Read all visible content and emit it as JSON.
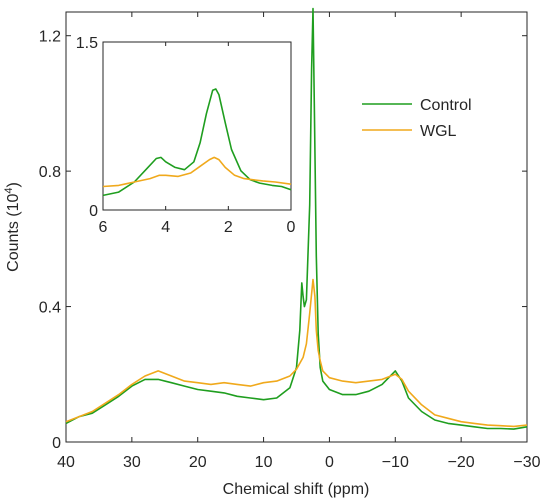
{
  "chart_data": [
    {
      "type": "line",
      "xlabel": "Chemical shift (ppm)",
      "ylabel_main": "Counts (10",
      "ylabel_sup": "4",
      "ylabel_close": ")",
      "xlim": [
        40,
        -30
      ],
      "ylim": [
        0,
        1.27
      ],
      "x_ticks": [
        40,
        30,
        20,
        10,
        0,
        -10,
        -20,
        -30
      ],
      "x_tick_labels": [
        "40",
        "30",
        "20",
        "10",
        "0",
        "−10",
        "−20",
        "−30"
      ],
      "y_ticks": [
        0,
        0.4,
        0.8,
        1.2
      ],
      "y_tick_labels": [
        "0",
        "0.4",
        "0.8",
        "1.2"
      ],
      "legend_position": "top-right",
      "series": [
        {
          "name": "Control",
          "color": "#1f9e1f",
          "x": [
            40,
            38,
            36,
            34,
            32,
            30,
            28,
            26,
            24,
            22,
            20,
            18,
            16,
            14,
            12,
            10,
            8,
            6,
            5,
            4.5,
            4.2,
            4.0,
            3.8,
            3.5,
            3.0,
            2.7,
            2.5,
            2.3,
            2.0,
            1.7,
            1.4,
            1.0,
            0,
            -2,
            -4,
            -6,
            -8,
            -10,
            -11,
            -12,
            -14,
            -16,
            -18,
            -20,
            -22,
            -24,
            -26,
            -28,
            -30
          ],
          "values": [
            0.055,
            0.075,
            0.085,
            0.11,
            0.135,
            0.165,
            0.185,
            0.185,
            0.175,
            0.165,
            0.155,
            0.15,
            0.145,
            0.135,
            0.13,
            0.125,
            0.13,
            0.16,
            0.22,
            0.33,
            0.47,
            0.43,
            0.4,
            0.42,
            0.7,
            1.1,
            1.28,
            1.0,
            0.55,
            0.32,
            0.22,
            0.18,
            0.155,
            0.14,
            0.14,
            0.15,
            0.17,
            0.21,
            0.18,
            0.13,
            0.09,
            0.065,
            0.055,
            0.05,
            0.045,
            0.04,
            0.04,
            0.038,
            0.045
          ]
        },
        {
          "name": "WGL",
          "color": "#f0a91c",
          "x": [
            40,
            38,
            36,
            34,
            32,
            30,
            28,
            26,
            24,
            22,
            20,
            18,
            16,
            14,
            12,
            10,
            8,
            6,
            5,
            4.0,
            3.5,
            3.0,
            2.5,
            2.2,
            2.0,
            1.7,
            1.4,
            1.0,
            0,
            -2,
            -4,
            -6,
            -8,
            -10,
            -11,
            -12,
            -14,
            -16,
            -18,
            -20,
            -22,
            -24,
            -26,
            -28,
            -30
          ],
          "values": [
            0.06,
            0.075,
            0.09,
            0.115,
            0.14,
            0.17,
            0.195,
            0.21,
            0.195,
            0.18,
            0.175,
            0.17,
            0.175,
            0.17,
            0.165,
            0.175,
            0.18,
            0.195,
            0.215,
            0.25,
            0.29,
            0.38,
            0.48,
            0.43,
            0.33,
            0.27,
            0.24,
            0.21,
            0.19,
            0.18,
            0.175,
            0.18,
            0.185,
            0.2,
            0.185,
            0.15,
            0.11,
            0.08,
            0.07,
            0.06,
            0.055,
            0.05,
            0.048,
            0.046,
            0.05
          ]
        }
      ]
    },
    {
      "type": "line",
      "xlim": [
        6,
        0
      ],
      "ylim": [
        0,
        1.5
      ],
      "x_ticks": [
        6,
        4,
        2,
        0
      ],
      "x_tick_labels": [
        "6",
        "4",
        "2",
        "0"
      ],
      "y_ticks": [
        0,
        1.5
      ],
      "y_tick_labels": [
        "0",
        "1.5"
      ],
      "series": [
        {
          "name": "Control",
          "color": "#1f9e1f",
          "x": [
            6,
            5.5,
            5.0,
            4.6,
            4.3,
            4.15,
            4.0,
            3.7,
            3.4,
            3.1,
            2.9,
            2.7,
            2.5,
            2.4,
            2.3,
            2.1,
            1.9,
            1.6,
            1.3,
            1.0,
            0.6,
            0.3,
            0
          ],
          "values": [
            0.13,
            0.16,
            0.25,
            0.37,
            0.46,
            0.47,
            0.43,
            0.38,
            0.36,
            0.43,
            0.6,
            0.86,
            1.07,
            1.08,
            1.03,
            0.78,
            0.54,
            0.35,
            0.27,
            0.24,
            0.22,
            0.21,
            0.18
          ]
        },
        {
          "name": "WGL",
          "color": "#f0a91c",
          "x": [
            6,
            5.5,
            5.0,
            4.5,
            4.2,
            4.0,
            3.6,
            3.2,
            2.9,
            2.6,
            2.45,
            2.3,
            2.1,
            1.8,
            1.5,
            1.2,
            0.9,
            0.5,
            0
          ],
          "values": [
            0.21,
            0.22,
            0.25,
            0.28,
            0.31,
            0.31,
            0.3,
            0.33,
            0.39,
            0.45,
            0.47,
            0.45,
            0.38,
            0.31,
            0.28,
            0.27,
            0.26,
            0.25,
            0.23
          ]
        }
      ]
    }
  ]
}
